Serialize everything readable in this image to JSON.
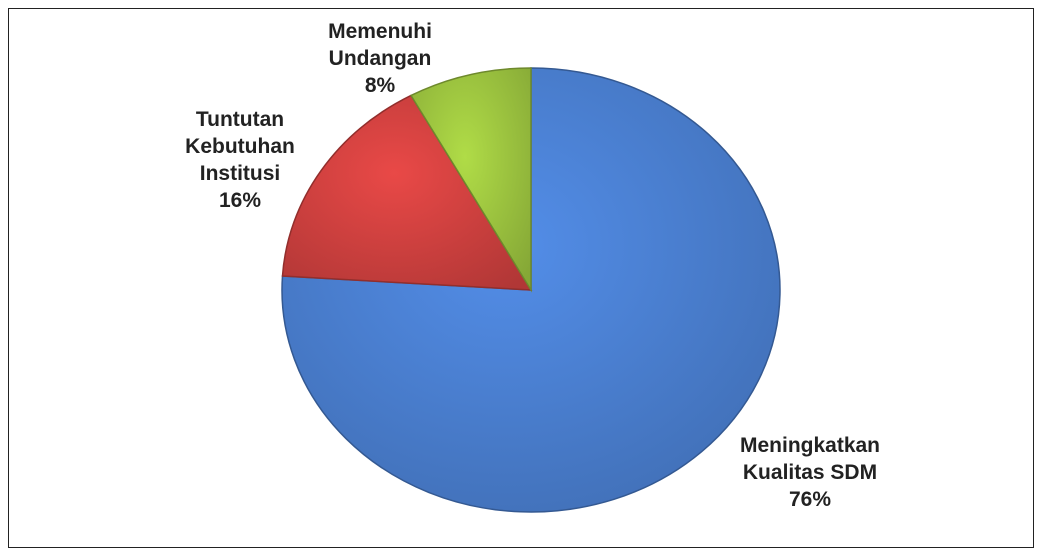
{
  "chart_data": {
    "type": "pie",
    "categories": [
      "Meningkatkan Kualitas SDM",
      "Tuntutan Kebutuhan Institusi",
      "Memenuhi Undangan"
    ],
    "values": [
      76,
      16,
      8
    ],
    "value_labels": [
      "76%",
      "16%",
      "8%"
    ],
    "colors": [
      "#4a7fd0",
      "#d0413f",
      "#9dc43f"
    ]
  }
}
